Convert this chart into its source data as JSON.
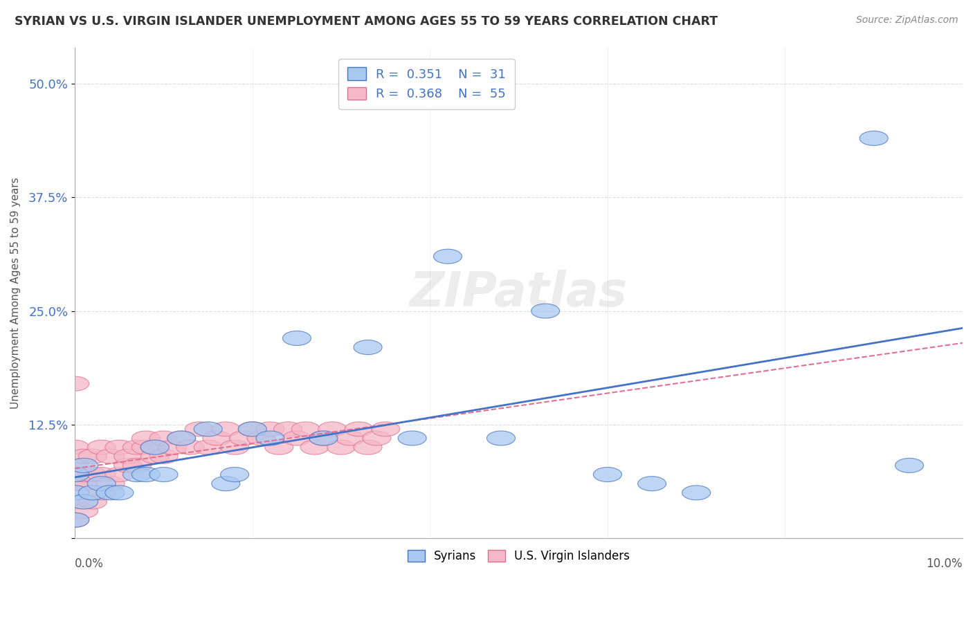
{
  "title": "SYRIAN VS U.S. VIRGIN ISLANDER UNEMPLOYMENT AMONG AGES 55 TO 59 YEARS CORRELATION CHART",
  "source": "Source: ZipAtlas.com",
  "ylabel": "Unemployment Among Ages 55 to 59 years",
  "xlim": [
    0.0,
    0.1
  ],
  "ylim": [
    0.0,
    0.54
  ],
  "ytick_vals": [
    0.0,
    0.125,
    0.25,
    0.375,
    0.5
  ],
  "ytick_labels": [
    "",
    "12.5%",
    "25.0%",
    "37.5%",
    "50.0%"
  ],
  "legend_syrian_R": "0.351",
  "legend_syrian_N": "31",
  "legend_usvi_R": "0.368",
  "legend_usvi_N": "55",
  "watermark": "ZIPatlas",
  "syrian_face_color": "#a8c8f0",
  "syrian_edge_color": "#4472c4",
  "usvi_face_color": "#f4b8c8",
  "usvi_edge_color": "#e07090",
  "background_color": "#ffffff",
  "grid_color": "#cccccc",
  "syrian_x": [
    0.0,
    0.0,
    0.0,
    0.001,
    0.001,
    0.002,
    0.003,
    0.004,
    0.005,
    0.007,
    0.008,
    0.009,
    0.01,
    0.012,
    0.015,
    0.017,
    0.018,
    0.02,
    0.022,
    0.025,
    0.028,
    0.033,
    0.038,
    0.042,
    0.048,
    0.053,
    0.06,
    0.065,
    0.07,
    0.09,
    0.094
  ],
  "syrian_y": [
    0.02,
    0.05,
    0.07,
    0.04,
    0.08,
    0.05,
    0.06,
    0.05,
    0.05,
    0.07,
    0.07,
    0.1,
    0.07,
    0.11,
    0.12,
    0.06,
    0.07,
    0.12,
    0.11,
    0.22,
    0.11,
    0.21,
    0.11,
    0.31,
    0.11,
    0.25,
    0.07,
    0.06,
    0.05,
    0.44,
    0.08
  ],
  "usvi_x": [
    0.0,
    0.0,
    0.0,
    0.0,
    0.0,
    0.0,
    0.001,
    0.001,
    0.001,
    0.001,
    0.002,
    0.002,
    0.002,
    0.003,
    0.003,
    0.003,
    0.004,
    0.004,
    0.005,
    0.005,
    0.006,
    0.006,
    0.007,
    0.007,
    0.008,
    0.008,
    0.009,
    0.009,
    0.01,
    0.01,
    0.011,
    0.012,
    0.013,
    0.014,
    0.015,
    0.016,
    0.017,
    0.018,
    0.019,
    0.02,
    0.021,
    0.022,
    0.023,
    0.024,
    0.025,
    0.026,
    0.027,
    0.028,
    0.029,
    0.03,
    0.031,
    0.032,
    0.033,
    0.034,
    0.035
  ],
  "usvi_y": [
    0.02,
    0.04,
    0.06,
    0.08,
    0.1,
    0.17,
    0.03,
    0.06,
    0.07,
    0.09,
    0.04,
    0.07,
    0.09,
    0.05,
    0.07,
    0.1,
    0.06,
    0.09,
    0.07,
    0.1,
    0.08,
    0.09,
    0.08,
    0.1,
    0.1,
    0.11,
    0.09,
    0.1,
    0.09,
    0.11,
    0.1,
    0.11,
    0.1,
    0.12,
    0.1,
    0.11,
    0.12,
    0.1,
    0.11,
    0.12,
    0.11,
    0.12,
    0.1,
    0.12,
    0.11,
    0.12,
    0.1,
    0.11,
    0.12,
    0.1,
    0.11,
    0.12,
    0.1,
    0.11,
    0.12
  ]
}
